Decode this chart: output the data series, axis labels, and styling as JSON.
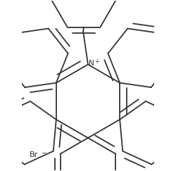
{
  "bg": "#ffffff",
  "lw": 1.3,
  "bond_color": "#333333",
  "text_color": "#333333",
  "figw": 2.5,
  "figh": 2.43,
  "dpi": 100,
  "br_text": "Br",
  "br_sup": "−",
  "N_label": "N",
  "N_sup": "+"
}
